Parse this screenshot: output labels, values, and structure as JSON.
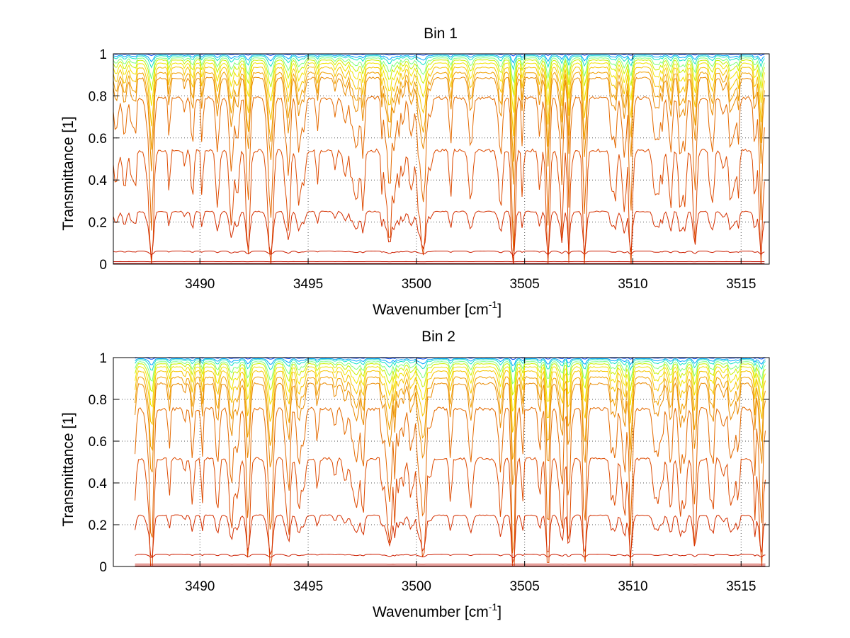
{
  "chart_data": [
    {
      "type": "line",
      "title": "Bin 1",
      "xlabel": "Wavenumber [cm",
      "xlabel_sup": "-1",
      "xlabel_end": "]",
      "ylabel": "Transmittance [1]",
      "xlim": [
        3486,
        3516.3
      ],
      "ylim": [
        0,
        1
      ],
      "xticks": [
        3490,
        3495,
        3500,
        3505,
        3510,
        3515
      ],
      "yticks": [
        0,
        0.2,
        0.4,
        0.6,
        0.8,
        1
      ],
      "grid": true,
      "x_start": 3486,
      "series_baseline": [
        1.0,
        0.995,
        0.99,
        0.98,
        0.97,
        0.955,
        0.935,
        0.91,
        0.885,
        0.79,
        0.54,
        0.25,
        0.062,
        0.012,
        0.003,
        0.001
      ],
      "series_colors": [
        "#0047ff",
        "#00a6ff",
        "#14e3c8",
        "#7fff7a",
        "#c8f000",
        "#f2e400",
        "#f5c400",
        "#f0a000",
        "#e98a00",
        "#e46a00",
        "#dd4a00",
        "#d43000",
        "#cc1e00",
        "#c21000",
        "#b80800",
        "#ad0000"
      ]
    },
    {
      "type": "line",
      "title": "Bin 2",
      "xlabel": "Wavenumber [cm",
      "xlabel_sup": "-1",
      "xlabel_end": "]",
      "ylabel": "Transmittance [1]",
      "xlim": [
        3486,
        3516.3
      ],
      "ylim": [
        0,
        1
      ],
      "xticks": [
        3490,
        3495,
        3500,
        3505,
        3510,
        3515
      ],
      "yticks": [
        0,
        0.2,
        0.4,
        0.6,
        0.8,
        1
      ],
      "grid": true,
      "x_start": 3487,
      "series_baseline": [
        1.0,
        0.995,
        0.99,
        0.98,
        0.97,
        0.955,
        0.935,
        0.905,
        0.875,
        0.755,
        0.515,
        0.245,
        0.058,
        0.011,
        0.003,
        0.001
      ],
      "series_colors": [
        "#0047ff",
        "#00a6ff",
        "#14e3c8",
        "#7fff7a",
        "#c8f000",
        "#f2e400",
        "#f5c400",
        "#f0a000",
        "#e98a00",
        "#e46a00",
        "#dd4a00",
        "#d43000",
        "#cc1e00",
        "#c21000",
        "#b80800",
        "#ad0000"
      ]
    }
  ]
}
